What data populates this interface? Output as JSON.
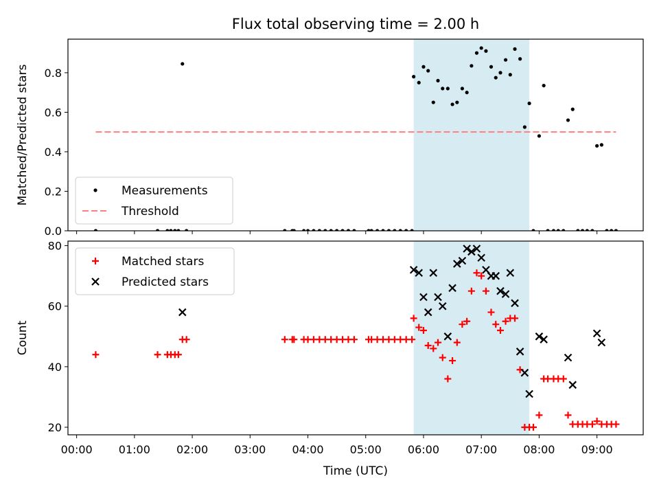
{
  "chart_data": {
    "type": "scatter",
    "title": "Flux total observing time = 2.00 h",
    "xlabel": "Time (UTC)",
    "x_unit": "hours UTC",
    "x_ticks": [
      {
        "value": 0,
        "label": "00:00"
      },
      {
        "value": 1,
        "label": "01:00"
      },
      {
        "value": 2,
        "label": "02:00"
      },
      {
        "value": 3,
        "label": "03:00"
      },
      {
        "value": 4,
        "label": "04:00"
      },
      {
        "value": 5,
        "label": "05:00"
      },
      {
        "value": 6,
        "label": "06:00"
      },
      {
        "value": 7,
        "label": "07:00"
      },
      {
        "value": 8,
        "label": "08:00"
      },
      {
        "value": 9,
        "label": "09:00"
      }
    ],
    "xlim": [
      -0.15,
      9.8
    ],
    "highlight_span": {
      "start": 5.83,
      "end": 7.83,
      "color": "#add8e6"
    },
    "panels": [
      {
        "ylabel": "Matched/Predicted stars",
        "ylim": [
          0,
          0.97
        ],
        "y_ticks": [
          {
            "value": 0,
            "label": "0.0"
          },
          {
            "value": 0.2,
            "label": "0.2"
          },
          {
            "value": 0.4,
            "label": "0.4"
          },
          {
            "value": 0.6,
            "label": "0.6"
          },
          {
            "value": 0.8,
            "label": "0.8"
          }
        ],
        "legend_position": "lower-left",
        "series": [
          {
            "name": "Measurements",
            "marker": "dot",
            "color": "#000000",
            "points": [
              [
                0.33,
                0
              ],
              [
                1.4,
                0
              ],
              [
                1.57,
                0
              ],
              [
                1.63,
                0
              ],
              [
                1.7,
                0
              ],
              [
                1.76,
                0
              ],
              [
                1.83,
                0.845
              ],
              [
                1.9,
                0
              ],
              [
                3.6,
                0
              ],
              [
                3.73,
                0
              ],
              [
                3.76,
                0
              ],
              [
                3.93,
                0
              ],
              [
                4.0,
                0
              ],
              [
                4.1,
                0
              ],
              [
                4.2,
                0
              ],
              [
                4.3,
                0
              ],
              [
                4.4,
                0
              ],
              [
                4.5,
                0
              ],
              [
                4.6,
                0
              ],
              [
                4.7,
                0
              ],
              [
                4.8,
                0
              ],
              [
                5.05,
                0
              ],
              [
                5.1,
                0
              ],
              [
                5.2,
                0
              ],
              [
                5.3,
                0
              ],
              [
                5.4,
                0
              ],
              [
                5.5,
                0
              ],
              [
                5.6,
                0
              ],
              [
                5.7,
                0
              ],
              [
                5.8,
                0
              ],
              [
                5.83,
                0.78
              ],
              [
                5.92,
                0.75
              ],
              [
                6.0,
                0.83
              ],
              [
                6.08,
                0.81
              ],
              [
                6.17,
                0.65
              ],
              [
                6.25,
                0.76
              ],
              [
                6.33,
                0.72
              ],
              [
                6.42,
                0.72
              ],
              [
                6.5,
                0.64
              ],
              [
                6.58,
                0.65
              ],
              [
                6.67,
                0.72
              ],
              [
                6.75,
                0.7
              ],
              [
                6.83,
                0.835
              ],
              [
                6.92,
                0.9
              ],
              [
                7.0,
                0.925
              ],
              [
                7.08,
                0.91
              ],
              [
                7.17,
                0.83
              ],
              [
                7.25,
                0.775
              ],
              [
                7.33,
                0.8
              ],
              [
                7.42,
                0.865
              ],
              [
                7.5,
                0.79
              ],
              [
                7.58,
                0.92
              ],
              [
                7.67,
                0.87
              ],
              [
                7.75,
                0.525
              ],
              [
                7.83,
                0.645
              ],
              [
                7.9,
                0
              ],
              [
                8.0,
                0.48
              ],
              [
                8.08,
                0.735
              ],
              [
                8.15,
                0
              ],
              [
                8.25,
                0
              ],
              [
                8.33,
                0
              ],
              [
                8.42,
                0
              ],
              [
                8.5,
                0.56
              ],
              [
                8.58,
                0.615
              ],
              [
                8.67,
                0
              ],
              [
                8.75,
                0
              ],
              [
                8.83,
                0
              ],
              [
                8.92,
                0
              ],
              [
                9.0,
                0.43
              ],
              [
                9.08,
                0.435
              ],
              [
                9.17,
                0
              ],
              [
                9.25,
                0
              ],
              [
                9.33,
                0
              ]
            ]
          },
          {
            "name": "Threshold",
            "marker": "dashed-line",
            "color": "#ff7f7f",
            "points": [
              [
                0.33,
                0.5
              ],
              [
                9.33,
                0.5
              ]
            ]
          }
        ]
      },
      {
        "ylabel": "Count",
        "ylim": [
          17.5,
          81.5
        ],
        "y_ticks": [
          {
            "value": 20,
            "label": "20"
          },
          {
            "value": 40,
            "label": "40"
          },
          {
            "value": 60,
            "label": "60"
          },
          {
            "value": 80,
            "label": "80"
          }
        ],
        "legend_position": "upper-left",
        "series": [
          {
            "name": "Matched stars",
            "marker": "plus",
            "color": "#ff0000",
            "points": [
              [
                0.33,
                44
              ],
              [
                1.4,
                44
              ],
              [
                1.57,
                44
              ],
              [
                1.63,
                44
              ],
              [
                1.7,
                44
              ],
              [
                1.76,
                44
              ],
              [
                1.83,
                49
              ],
              [
                1.9,
                49
              ],
              [
                3.6,
                49
              ],
              [
                3.73,
                49
              ],
              [
                3.76,
                49
              ],
              [
                3.93,
                49
              ],
              [
                4.0,
                49
              ],
              [
                4.1,
                49
              ],
              [
                4.2,
                49
              ],
              [
                4.3,
                49
              ],
              [
                4.4,
                49
              ],
              [
                4.5,
                49
              ],
              [
                4.6,
                49
              ],
              [
                4.7,
                49
              ],
              [
                4.8,
                49
              ],
              [
                5.05,
                49
              ],
              [
                5.1,
                49
              ],
              [
                5.2,
                49
              ],
              [
                5.3,
                49
              ],
              [
                5.4,
                49
              ],
              [
                5.5,
                49
              ],
              [
                5.6,
                49
              ],
              [
                5.7,
                49
              ],
              [
                5.8,
                49
              ],
              [
                5.83,
                56
              ],
              [
                5.92,
                53
              ],
              [
                6.0,
                52
              ],
              [
                6.08,
                47
              ],
              [
                6.17,
                46
              ],
              [
                6.25,
                48
              ],
              [
                6.33,
                43
              ],
              [
                6.42,
                36
              ],
              [
                6.5,
                42
              ],
              [
                6.58,
                48
              ],
              [
                6.67,
                54
              ],
              [
                6.75,
                55
              ],
              [
                6.83,
                65
              ],
              [
                6.92,
                71
              ],
              [
                7.0,
                70
              ],
              [
                7.08,
                65
              ],
              [
                7.17,
                58
              ],
              [
                7.25,
                54
              ],
              [
                7.33,
                52
              ],
              [
                7.42,
                55
              ],
              [
                7.5,
                56
              ],
              [
                7.58,
                56
              ],
              [
                7.67,
                39
              ],
              [
                7.75,
                20
              ],
              [
                7.83,
                20
              ],
              [
                7.9,
                20
              ],
              [
                8.0,
                24
              ],
              [
                8.08,
                36
              ],
              [
                8.15,
                36
              ],
              [
                8.25,
                36
              ],
              [
                8.33,
                36
              ],
              [
                8.42,
                36
              ],
              [
                8.5,
                24
              ],
              [
                8.58,
                21
              ],
              [
                8.67,
                21
              ],
              [
                8.75,
                21
              ],
              [
                8.83,
                21
              ],
              [
                8.92,
                21
              ],
              [
                9.0,
                22
              ],
              [
                9.08,
                21
              ],
              [
                9.17,
                21
              ],
              [
                9.25,
                21
              ],
              [
                9.33,
                21
              ]
            ]
          },
          {
            "name": "Predicted stars",
            "marker": "x",
            "color": "#000000",
            "points": [
              [
                1.83,
                58
              ],
              [
                5.83,
                72
              ],
              [
                5.92,
                71
              ],
              [
                6.0,
                63
              ],
              [
                6.08,
                58
              ],
              [
                6.17,
                71
              ],
              [
                6.25,
                63
              ],
              [
                6.33,
                60
              ],
              [
                6.42,
                50
              ],
              [
                6.5,
                66
              ],
              [
                6.58,
                74
              ],
              [
                6.67,
                75
              ],
              [
                6.75,
                79
              ],
              [
                6.83,
                78
              ],
              [
                6.92,
                79
              ],
              [
                7.0,
                76
              ],
              [
                7.08,
                72
              ],
              [
                7.17,
                70
              ],
              [
                7.25,
                70
              ],
              [
                7.33,
                65
              ],
              [
                7.42,
                64
              ],
              [
                7.5,
                71
              ],
              [
                7.58,
                61
              ],
              [
                7.67,
                45
              ],
              [
                7.75,
                38
              ],
              [
                7.83,
                31
              ],
              [
                8.0,
                50
              ],
              [
                8.08,
                49
              ],
              [
                8.5,
                43
              ],
              [
                8.58,
                34
              ],
              [
                9.0,
                51
              ],
              [
                9.08,
                48
              ]
            ]
          }
        ]
      }
    ]
  }
}
